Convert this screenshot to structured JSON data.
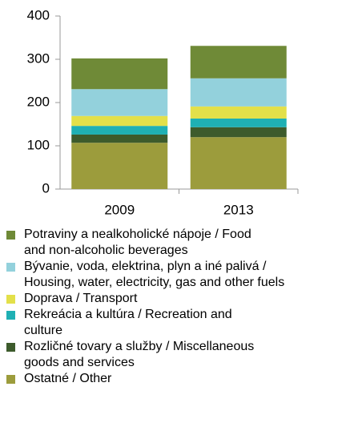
{
  "chart_data": {
    "type": "stacked_bar",
    "categories": [
      "2009",
      "2013"
    ],
    "series": [
      {
        "name": "Potraviny a nealkoholické nápoje / Food and non-alcoholic beverages",
        "color": "#6f8a37",
        "values": [
          71,
          75
        ]
      },
      {
        "name": "Bývanie, voda, elektrina, plyn a iné palivá / Housing, water, electricity, gas and other fuels",
        "color": "#93d1dc",
        "values": [
          62,
          65
        ]
      },
      {
        "name": "Doprava / Transport",
        "color": "#e3e04a",
        "values": [
          23,
          28
        ]
      },
      {
        "name": "Rekreácia a kultúra / Recreation and culture",
        "color": "#1fb0b4",
        "values": [
          20,
          20
        ]
      },
      {
        "name": "Rozličné tovary a služby / Miscellaneous goods and services",
        "color": "#3d5b2c",
        "values": [
          19,
          23
        ]
      },
      {
        "name": "Ostatné / Other",
        "color": "#9c9c3c",
        "values": [
          107,
          120
        ]
      }
    ],
    "ylim": [
      0,
      400
    ],
    "yticks": [
      0,
      100,
      200,
      300,
      400
    ],
    "grid": false,
    "legend": "bottom"
  }
}
